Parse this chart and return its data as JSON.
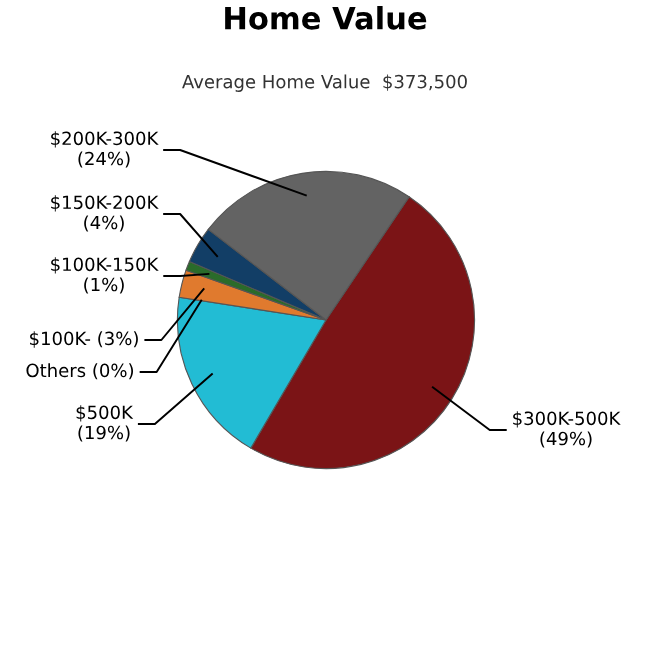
{
  "chart_data": {
    "type": "pie",
    "title": "Home Value",
    "subtitle": "Average Home Value  $373,500",
    "categories": [
      "$300K-500K",
      "$500K",
      "Others",
      "$100K-",
      "$100K-150K",
      "$150K-200K",
      "$200K-300K"
    ],
    "values": [
      49,
      19,
      0,
      3,
      1,
      4,
      24
    ],
    "value_labels": [
      "(49%)",
      "(19%)",
      "(0%)",
      "(3%)",
      "(1%)",
      "(4%)",
      "(24%)"
    ],
    "colors": [
      "#7b1416",
      "#22bcd4",
      "#999999",
      "#e07a2e",
      "#2a6b2a",
      "#123e66",
      "#636363"
    ]
  }
}
